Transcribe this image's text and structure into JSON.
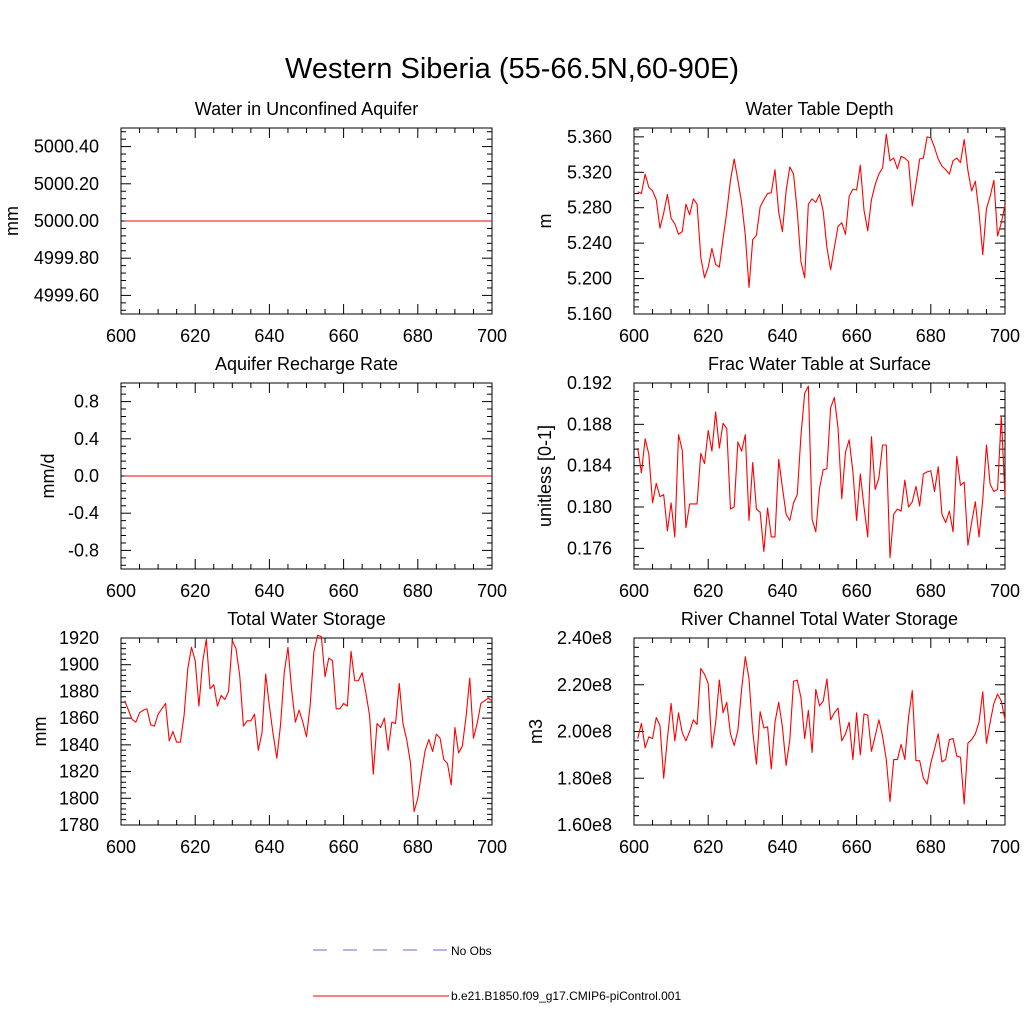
{
  "figure": {
    "title": "Western Siberia (55-66.5N,60-90E)"
  },
  "colors": {
    "model": "#ff0000",
    "obs": "#6b6bc8",
    "axis": "#000000"
  },
  "legend": {
    "obs_label": "No Obs",
    "model_label": "b.e21.B1850.f09_g17.CMIP6-piControl.001"
  },
  "chart_data": [
    {
      "type": "line",
      "title": "Water in Unconfined Aquifer",
      "ylabel": "mm",
      "xlim": [
        600,
        700
      ],
      "ylim": [
        4999.5,
        5000.5
      ],
      "xticks": [
        600,
        620,
        640,
        660,
        680,
        700
      ],
      "xtick_labels": [
        "600",
        "620",
        "640",
        "660",
        "680",
        "700"
      ],
      "yticks": [
        4999.6,
        4999.8,
        5000.0,
        5000.2,
        5000.4
      ],
      "ytick_labels": [
        "4999.60",
        "4999.80",
        "5000.00",
        "5000.20",
        "5000.40"
      ],
      "x_start": 601,
      "x_step": 1,
      "series": [
        {
          "name": "b.e21.B1850.f09_g17.CMIP6-piControl.001",
          "values": [
            5000,
            5000,
            5000,
            5000,
            5000,
            5000,
            5000,
            5000,
            5000,
            5000,
            5000,
            5000,
            5000,
            5000,
            5000,
            5000,
            5000,
            5000,
            5000,
            5000,
            5000,
            5000,
            5000,
            5000,
            5000,
            5000,
            5000,
            5000,
            5000,
            5000,
            5000,
            5000,
            5000,
            5000,
            5000,
            5000,
            5000,
            5000,
            5000,
            5000,
            5000,
            5000,
            5000,
            5000,
            5000,
            5000,
            5000,
            5000,
            5000,
            5000,
            5000,
            5000,
            5000,
            5000,
            5000,
            5000,
            5000,
            5000,
            5000,
            5000,
            5000,
            5000,
            5000,
            5000,
            5000,
            5000,
            5000,
            5000,
            5000,
            5000,
            5000,
            5000,
            5000,
            5000,
            5000,
            5000,
            5000,
            5000,
            5000,
            5000,
            5000,
            5000,
            5000,
            5000,
            5000,
            5000,
            5000,
            5000,
            5000,
            5000,
            5000,
            5000,
            5000,
            5000,
            5000,
            5000,
            5000,
            5000,
            5000,
            5000
          ]
        }
      ]
    },
    {
      "type": "line",
      "title": "Water Table Depth",
      "ylabel": "m",
      "xlim": [
        600,
        700
      ],
      "ylim": [
        5.16,
        5.37
      ],
      "xticks": [
        600,
        620,
        640,
        660,
        680,
        700
      ],
      "xtick_labels": [
        "600",
        "620",
        "640",
        "660",
        "680",
        "700"
      ],
      "yticks": [
        5.16,
        5.2,
        5.24,
        5.28,
        5.32,
        5.36
      ],
      "ytick_labels": [
        "5.160",
        "5.200",
        "5.240",
        "5.280",
        "5.320",
        "5.360"
      ],
      "x_start": 601,
      "x_step": 1,
      "series": [
        {
          "name": "b.e21.B1850.f09_g17.CMIP6-piControl.001",
          "values": [
            5.298,
            5.296,
            5.318,
            5.303,
            5.299,
            5.289,
            5.257,
            5.274,
            5.295,
            5.268,
            5.262,
            5.25,
            5.253,
            5.284,
            5.272,
            5.29,
            5.284,
            5.224,
            5.201,
            5.213,
            5.234,
            5.216,
            5.213,
            5.245,
            5.275,
            5.311,
            5.335,
            5.311,
            5.286,
            5.249,
            5.19,
            5.244,
            5.249,
            5.281,
            5.289,
            5.296,
            5.297,
            5.323,
            5.275,
            5.253,
            5.299,
            5.326,
            5.318,
            5.276,
            5.219,
            5.201,
            5.284,
            5.29,
            5.286,
            5.295,
            5.276,
            5.235,
            5.21,
            5.235,
            5.259,
            5.263,
            5.25,
            5.293,
            5.301,
            5.3,
            5.328,
            5.277,
            5.254,
            5.289,
            5.306,
            5.318,
            5.325,
            5.363,
            5.333,
            5.336,
            5.324,
            5.338,
            5.336,
            5.332,
            5.282,
            5.307,
            5.335,
            5.336,
            5.36,
            5.359,
            5.348,
            5.335,
            5.327,
            5.323,
            5.318,
            5.333,
            5.336,
            5.331,
            5.357,
            5.322,
            5.299,
            5.31,
            5.275,
            5.227,
            5.279,
            5.293,
            5.311,
            5.248,
            5.263,
            5.283
          ]
        }
      ]
    },
    {
      "type": "line",
      "title": "Aquifer Recharge Rate",
      "ylabel": "mm/d",
      "xlim": [
        600,
        700
      ],
      "ylim": [
        -1,
        1
      ],
      "xticks": [
        600,
        620,
        640,
        660,
        680,
        700
      ],
      "xtick_labels": [
        "600",
        "620",
        "640",
        "660",
        "680",
        "700"
      ],
      "yticks": [
        -0.8,
        -0.4,
        0,
        0.4,
        0.8
      ],
      "ytick_labels": [
        "-0.8",
        "-0.4",
        "0.0",
        "0.4",
        "0.8"
      ],
      "x_start": 601,
      "x_step": 1,
      "series": [
        {
          "name": "b.e21.B1850.f09_g17.CMIP6-piControl.001",
          "values": [
            0,
            0,
            0,
            0,
            0,
            0,
            0,
            0,
            0,
            0,
            0,
            0,
            0,
            0,
            0,
            0,
            0,
            0,
            0,
            0,
            0,
            0,
            0,
            0,
            0,
            0,
            0,
            0,
            0,
            0,
            0,
            0,
            0,
            0,
            0,
            0,
            0,
            0,
            0,
            0,
            0,
            0,
            0,
            0,
            0,
            0,
            0,
            0,
            0,
            0,
            0,
            0,
            0,
            0,
            0,
            0,
            0,
            0,
            0,
            0,
            0,
            0,
            0,
            0,
            0,
            0,
            0,
            0,
            0,
            0,
            0,
            0,
            0,
            0,
            0,
            0,
            0,
            0,
            0,
            0,
            0,
            0,
            0,
            0,
            0,
            0,
            0,
            0,
            0,
            0,
            0,
            0,
            0,
            0,
            0,
            0,
            0,
            0,
            0,
            0
          ]
        }
      ]
    },
    {
      "type": "line",
      "title": "Frac Water Table at Surface",
      "ylabel": "unitless [0-1]",
      "xlim": [
        600,
        700
      ],
      "ylim": [
        0.174,
        0.192
      ],
      "xticks": [
        600,
        620,
        640,
        660,
        680,
        700
      ],
      "xtick_labels": [
        "600",
        "620",
        "640",
        "660",
        "680",
        "700"
      ],
      "yticks": [
        0.176,
        0.18,
        0.184,
        0.188,
        0.192
      ],
      "ytick_labels": [
        "0.176",
        "0.180",
        "0.184",
        "0.188",
        "0.192"
      ],
      "x_start": 601,
      "x_step": 1,
      "series": [
        {
          "name": "b.e21.B1850.f09_g17.CMIP6-piControl.001",
          "values": [
            0.1857,
            0.1833,
            0.1866,
            0.1851,
            0.1804,
            0.1823,
            0.181,
            0.1812,
            0.1777,
            0.1804,
            0.1771,
            0.187,
            0.1855,
            0.178,
            0.1803,
            0.1803,
            0.1803,
            0.1852,
            0.1842,
            0.1874,
            0.1854,
            0.1892,
            0.1857,
            0.1881,
            0.1876,
            0.1798,
            0.18,
            0.1863,
            0.1854,
            0.187,
            0.1787,
            0.1843,
            0.1798,
            0.1795,
            0.1757,
            0.1799,
            0.1771,
            0.1771,
            0.1846,
            0.1819,
            0.1793,
            0.1787,
            0.1804,
            0.1812,
            0.1869,
            0.191,
            0.1917,
            0.1788,
            0.1776,
            0.1818,
            0.1836,
            0.1837,
            0.1896,
            0.1906,
            0.1876,
            0.1808,
            0.1853,
            0.1865,
            0.1834,
            0.1787,
            0.1832,
            0.18,
            0.1771,
            0.1868,
            0.1817,
            0.1828,
            0.186,
            0.186,
            0.1751,
            0.1793,
            0.1798,
            0.1796,
            0.1826,
            0.18,
            0.1805,
            0.182,
            0.1801,
            0.1832,
            0.1834,
            0.1835,
            0.1815,
            0.1839,
            0.1793,
            0.1785,
            0.1796,
            0.1776,
            0.1849,
            0.1821,
            0.1824,
            0.1763,
            0.1785,
            0.1805,
            0.1771,
            0.1807,
            0.186,
            0.1822,
            0.1815,
            0.1817,
            0.1888,
            0.181
          ]
        }
      ]
    },
    {
      "type": "line",
      "title": "Total Water Storage",
      "ylabel": "mm",
      "xlim": [
        600,
        700
      ],
      "ylim": [
        1780,
        1920
      ],
      "xticks": [
        600,
        620,
        640,
        660,
        680,
        700
      ],
      "xtick_labels": [
        "600",
        "620",
        "640",
        "660",
        "680",
        "700"
      ],
      "yticks": [
        1780,
        1800,
        1820,
        1840,
        1860,
        1880,
        1900,
        1920
      ],
      "ytick_labels": [
        "1780",
        "1800",
        "1820",
        "1840",
        "1860",
        "1880",
        "1900",
        "1920"
      ],
      "x_start": 601,
      "x_step": 1,
      "series": [
        {
          "name": "b.e21.B1850.f09_g17.CMIP6-piControl.001",
          "values": [
            1873,
            1866,
            1859,
            1857,
            1864,
            1866,
            1867,
            1855,
            1854,
            1863,
            1867,
            1871,
            1843,
            1850,
            1842,
            1842,
            1862,
            1897,
            1913,
            1903,
            1869,
            1902,
            1919,
            1882,
            1885,
            1869,
            1877,
            1874,
            1880,
            1918,
            1912,
            1892,
            1854,
            1858,
            1858,
            1863,
            1836,
            1849,
            1893,
            1869,
            1848,
            1830,
            1855,
            1894,
            1913,
            1881,
            1857,
            1866,
            1857,
            1846,
            1870,
            1910,
            1922,
            1921,
            1891,
            1905,
            1903,
            1867,
            1867,
            1871,
            1869,
            1910,
            1888,
            1888,
            1894,
            1879,
            1862,
            1818,
            1856,
            1853,
            1860,
            1836,
            1857,
            1856,
            1886,
            1856,
            1844,
            1827,
            1790,
            1800,
            1819,
            1836,
            1844,
            1835,
            1848,
            1845,
            1829,
            1826,
            1810,
            1853,
            1834,
            1839,
            1861,
            1890,
            1845,
            1856,
            1871,
            1873,
            1875,
            1873
          ]
        }
      ]
    },
    {
      "type": "line",
      "title": "River Channel Total Water Storage",
      "ylabel": "m3",
      "xlim": [
        600,
        700
      ],
      "ylim": [
        160000000,
        240000000
      ],
      "xticks": [
        600,
        620,
        640,
        660,
        680,
        700
      ],
      "xtick_labels": [
        "600",
        "620",
        "640",
        "660",
        "680",
        "700"
      ],
      "yticks": [
        160000000,
        180000000,
        200000000,
        220000000,
        240000000
      ],
      "ytick_labels": [
        "1.60e8",
        "1.80e8",
        "2.00e8",
        "2.20e8",
        "2.40e8"
      ],
      "x_start": 601,
      "x_step": 1,
      "series": [
        {
          "name": "b.e21.B1850.f09_g17.CMIP6-piControl.001",
          "values": [
            197000000,
            203500000,
            193000000,
            197700000,
            197000000,
            206000000,
            202500000,
            180000000,
            197000000,
            212000000,
            196000000,
            208000000,
            199500000,
            196000000,
            200000000,
            205000000,
            203000000,
            227000000,
            224500000,
            220500000,
            193000000,
            203500000,
            222000000,
            208000000,
            212500000,
            199000000,
            194000000,
            200500000,
            218000000,
            232000000,
            222500000,
            200000000,
            186000000,
            208500000,
            201500000,
            202000000,
            184000000,
            204000000,
            212500000,
            202000000,
            185500000,
            196500000,
            221500000,
            222000000,
            214500000,
            197000000,
            209000000,
            191000000,
            218000000,
            211000000,
            213000000,
            222500000,
            205000000,
            208000000,
            210000000,
            196000000,
            199000000,
            204000000,
            188000000,
            208000000,
            190000000,
            207500000,
            207000000,
            191500000,
            198000000,
            205000000,
            198000000,
            188000000,
            170000000,
            188000000,
            188000000,
            194500000,
            188000000,
            206000000,
            217500000,
            187500000,
            187500000,
            180000000,
            177500000,
            186500000,
            192500000,
            199000000,
            187000000,
            188000000,
            196500000,
            197000000,
            189500000,
            189000000,
            169000000,
            195000000,
            196500000,
            199000000,
            204000000,
            217000000,
            195000000,
            204000000,
            212000000,
            216000000,
            213000000,
            205000000
          ]
        }
      ]
    }
  ]
}
